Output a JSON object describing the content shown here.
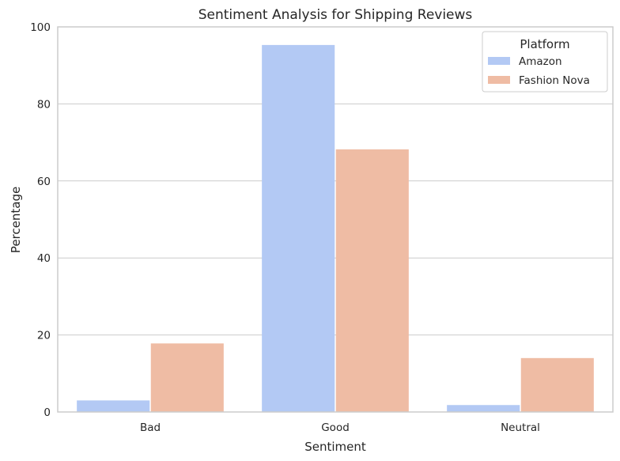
{
  "chart_data": {
    "type": "bar",
    "title": "Sentiment Analysis for Shipping Reviews",
    "xlabel": "Sentiment",
    "ylabel": "Percentage",
    "categories": [
      "Bad",
      "Good",
      "Neutral"
    ],
    "ylim": [
      0,
      100
    ],
    "yticks": [
      0,
      20,
      40,
      60,
      80,
      100
    ],
    "grid": true,
    "legend": {
      "title": "Platform",
      "placement": "top-right"
    },
    "series": [
      {
        "name": "Amazon",
        "color": "#b3c9f4",
        "values": [
          3.0,
          95.3,
          1.8
        ]
      },
      {
        "name": "Fashion Nova",
        "color": "#efbca4",
        "values": [
          17.8,
          68.2,
          14.0
        ]
      }
    ]
  }
}
